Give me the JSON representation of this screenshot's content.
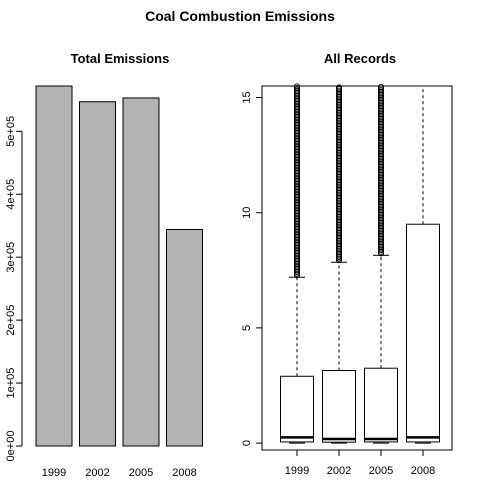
{
  "figure": {
    "title": "Coal Combustion Emissions"
  },
  "chart_data": [
    {
      "type": "bar",
      "title": "Total Emissions",
      "categories": [
        "1999",
        "2002",
        "2005",
        "2008"
      ],
      "values": [
        572000,
        547000,
        553000,
        344000
      ],
      "ylim": [
        0,
        572000
      ],
      "yticks": [
        0,
        100000,
        200000,
        300000,
        400000,
        500000
      ],
      "ytick_labels": [
        "0e+00",
        "1e+05",
        "2e+05",
        "3e+05",
        "4e+05",
        "5e+05"
      ],
      "bar_color": "#b3b3b3",
      "grid": false
    },
    {
      "type": "box",
      "title": "All Records",
      "categories": [
        "1999",
        "2002",
        "2005",
        "2008"
      ],
      "ylim": [
        -0.3,
        15.5
      ],
      "yticks": [
        0,
        5,
        10,
        15
      ],
      "ytick_labels": [
        "0",
        "5",
        "10",
        "15"
      ],
      "grid": false,
      "boxes": [
        {
          "q1": 0.05,
          "median": 0.25,
          "q3": 2.9,
          "whisker_low": 0.0,
          "whisker_high": 7.2,
          "outliers_from": 7.2,
          "outliers_to": 15.5
        },
        {
          "q1": 0.04,
          "median": 0.18,
          "q3": 3.15,
          "whisker_low": 0.0,
          "whisker_high": 7.85,
          "outliers_from": 7.85,
          "outliers_to": 15.5
        },
        {
          "q1": 0.05,
          "median": 0.18,
          "q3": 3.25,
          "whisker_low": 0.0,
          "whisker_high": 8.15,
          "outliers_from": 8.15,
          "outliers_to": 15.5
        },
        {
          "q1": 0.05,
          "median": 0.25,
          "q3": 9.5,
          "whisker_low": 0.0,
          "whisker_high": 15.5,
          "outliers_from": null,
          "outliers_to": null
        }
      ]
    }
  ]
}
